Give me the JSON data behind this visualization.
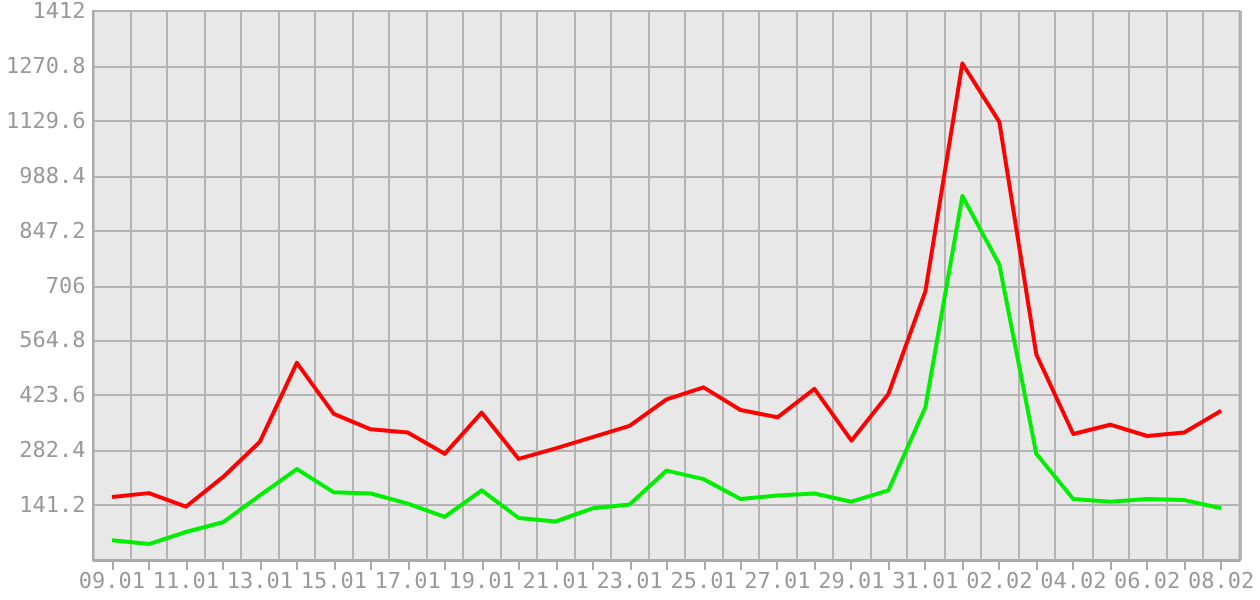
{
  "chart_data": {
    "type": "line",
    "categories": [
      "09.01",
      null,
      "11.01",
      null,
      "13.01",
      null,
      "15.01",
      null,
      "17.01",
      null,
      "19.01",
      null,
      "21.01",
      null,
      "23.01",
      null,
      "25.01",
      null,
      "27.01",
      null,
      "29.01",
      null,
      "31.01",
      null,
      "02.02",
      null,
      "04.02",
      null,
      "06.02",
      null,
      "08.02"
    ],
    "series": [
      {
        "color": "#ff0000",
        "values": [
          162,
          172,
          137,
          213,
          304,
          507,
          376,
          336,
          328,
          273,
          379,
          260,
          287,
          316,
          345,
          413,
          444,
          386,
          367,
          440,
          307,
          427,
          691,
          1277,
          1127,
          529,
          324,
          348,
          319,
          328,
          384
        ]
      },
      {
        "color": "#00ee00",
        "values": [
          51,
          41,
          72,
          97,
          166,
          234,
          174,
          171,
          145,
          111,
          179,
          108,
          99,
          133,
          143,
          230,
          208,
          157,
          166,
          171,
          150,
          179,
          393,
          936,
          760,
          273,
          157,
          150,
          157,
          154,
          133
        ]
      }
    ],
    "ylim": [
      0,
      1412
    ],
    "yticks": [
      {
        "value": 0,
        "label": null
      },
      141.2,
      282.4,
      423.6,
      564.8,
      706,
      847.2,
      988.4,
      1129.6,
      1270.8,
      1412
    ],
    "grid": true,
    "marker": "none",
    "line_style": "solid"
  }
}
